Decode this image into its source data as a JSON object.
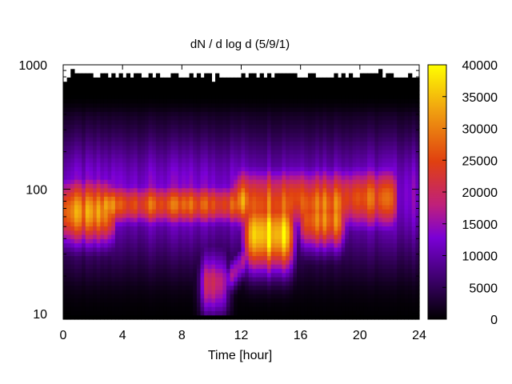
{
  "chart_data": {
    "type": "heatmap",
    "title": "dN / d log d (5/9/1)",
    "xlabel": "Time [hour]",
    "ylabel": "",
    "x_range": [
      0,
      24
    ],
    "x_ticks": [
      0,
      4,
      8,
      12,
      16,
      20,
      24
    ],
    "y_scale": "log",
    "y_range": [
      9,
      1000
    ],
    "y_ticks": [
      10,
      100,
      1000
    ],
    "colorbar": {
      "range": [
        0,
        40000
      ],
      "ticks": [
        0,
        5000,
        10000,
        15000,
        20000,
        25000,
        30000,
        35000,
        40000
      ],
      "palette": [
        "#000000",
        "#3a0066",
        "#7a00d6",
        "#c0207a",
        "#e04010",
        "#f0a010",
        "#ffff00"
      ]
    },
    "features": [
      {
        "time": [
          0,
          3
        ],
        "diameter": [
          45,
          95
        ],
        "level": 26000
      },
      {
        "time": [
          3,
          12
        ],
        "diameter": [
          60,
          95
        ],
        "level": 22000
      },
      {
        "time": [
          12.8,
          15
        ],
        "diameter": [
          28,
          65
        ],
        "level": 37000
      },
      {
        "time": [
          16.5,
          18.5
        ],
        "diameter": [
          40,
          80
        ],
        "level": 27000
      },
      {
        "time": [
          12,
          22
        ],
        "diameter": [
          60,
          120
        ],
        "level": 22000
      },
      {
        "time": [
          9.8,
          10.6
        ],
        "diameter": [
          9,
          22
        ],
        "level": 25000
      }
    ]
  }
}
